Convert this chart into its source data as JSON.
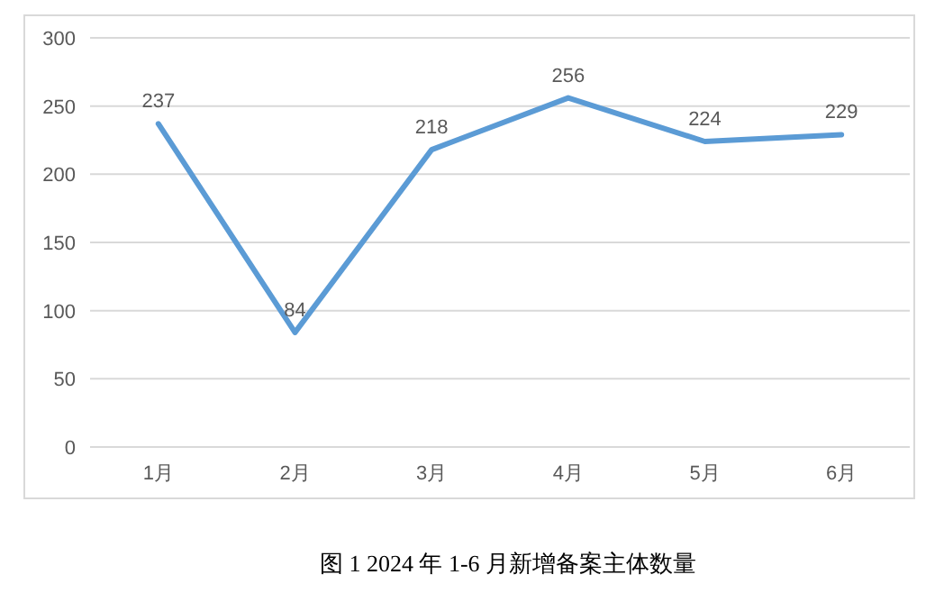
{
  "chart_data": {
    "type": "line",
    "title": "图 1   2024 年 1-6 月新增备案主体数量",
    "categories": [
      "1月",
      "2月",
      "3月",
      "4月",
      "5月",
      "6月"
    ],
    "values": [
      237,
      84,
      218,
      256,
      224,
      229
    ],
    "color": "#5b9bd5",
    "ylim": [
      0,
      300
    ],
    "yticks": [
      0,
      50,
      100,
      150,
      200,
      250,
      300
    ],
    "grid": "y",
    "data_labels": true,
    "marker": "none",
    "line_style": "solid"
  }
}
